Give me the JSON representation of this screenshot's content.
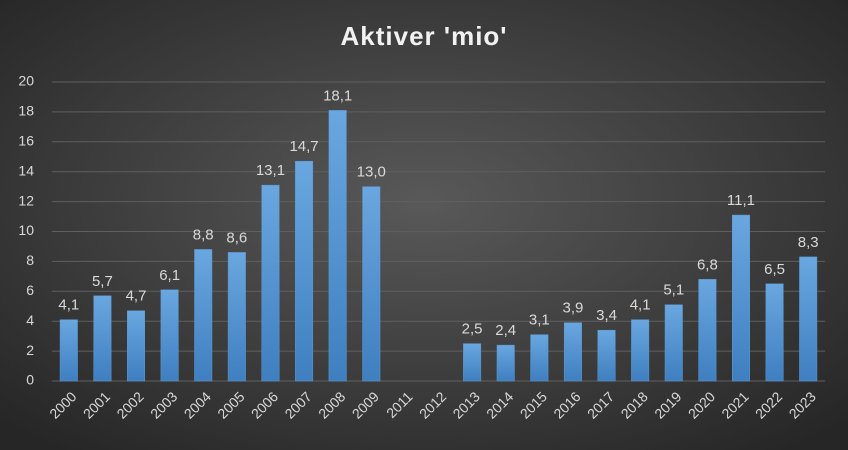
{
  "chart_data": {
    "type": "bar",
    "title": "Aktiver 'mio'",
    "categories": [
      "2000",
      "2001",
      "2002",
      "2003",
      "2004",
      "2005",
      "2006",
      "2007",
      "2008",
      "2009",
      "2011",
      "2012",
      "2013",
      "2014",
      "2015",
      "2016",
      "2017",
      "2018",
      "2019",
      "2020",
      "2021",
      "2022",
      "2023"
    ],
    "values": [
      4.1,
      5.7,
      4.7,
      6.1,
      8.8,
      8.6,
      13.1,
      14.7,
      18.1,
      13.0,
      null,
      null,
      2.5,
      2.4,
      3.1,
      3.9,
      3.4,
      4.1,
      5.1,
      6.8,
      11.1,
      6.5,
      8.3
    ],
    "value_labels": [
      "4,1",
      "5,7",
      "4,7",
      "6,1",
      "8,8",
      "8,6",
      "13,1",
      "14,7",
      "18,1",
      "13,0",
      null,
      null,
      "2,5",
      "2,4",
      "3,1",
      "3,9",
      "3,4",
      "4,1",
      "5,1",
      "6,8",
      "11,1",
      "6,5",
      "8,3"
    ],
    "color": "#5b9bd5",
    "ylim": [
      0,
      20
    ],
    "yticks": [
      0,
      2,
      4,
      6,
      8,
      10,
      12,
      14,
      16,
      18,
      20
    ],
    "grid": true
  }
}
